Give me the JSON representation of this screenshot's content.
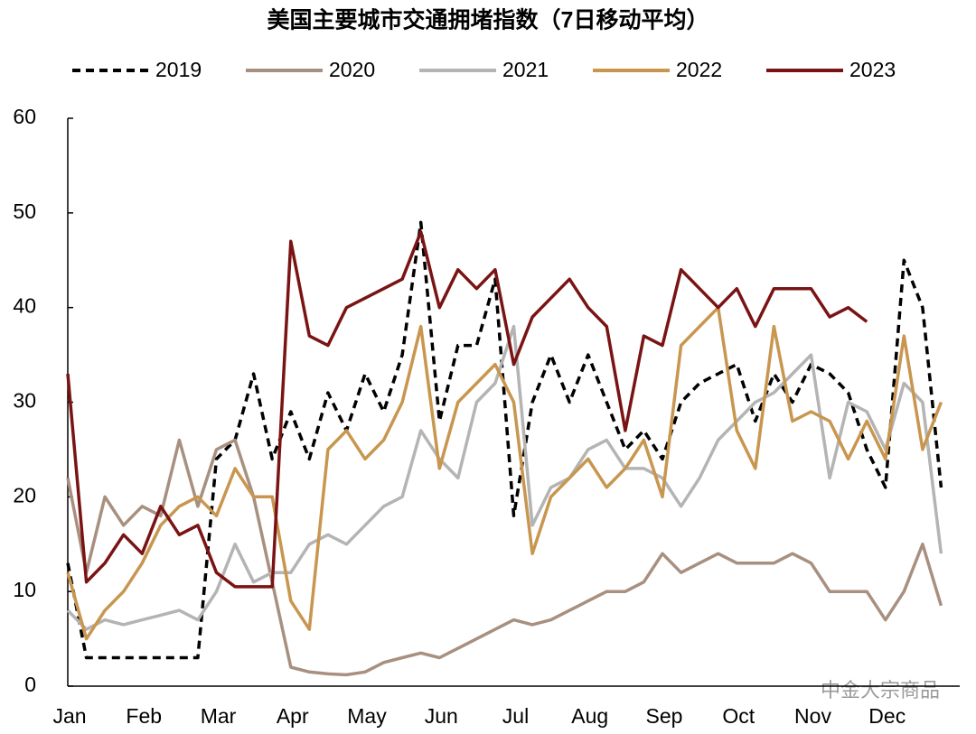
{
  "chart_data": {
    "type": "line",
    "title": "美国主要城市交通拥堵指数（7日移动平均）",
    "annotation": "中金大宗商品",
    "categories": [
      "Jan",
      null,
      null,
      null,
      "Feb",
      null,
      null,
      null,
      "Mar",
      null,
      null,
      null,
      "Apr",
      null,
      null,
      null,
      "May",
      null,
      null,
      null,
      "Jun",
      null,
      null,
      null,
      "Jul",
      null,
      null,
      null,
      "Aug",
      null,
      null,
      null,
      "Sep",
      null,
      null,
      null,
      "Oct",
      null,
      null,
      null,
      "Nov",
      null,
      null,
      null,
      "Dec",
      null,
      null,
      null
    ],
    "series": [
      {
        "name": "2019",
        "color": "#000000",
        "dash": true,
        "values": [
          13,
          3,
          3,
          3,
          3,
          3,
          3,
          3,
          24,
          26,
          33,
          24,
          29,
          24,
          31,
          27,
          33,
          29,
          35,
          49,
          28,
          36,
          36,
          43,
          18,
          30,
          35,
          30,
          35,
          30,
          25,
          27,
          24,
          30,
          32,
          33,
          34,
          28,
          33,
          30,
          34,
          33,
          31,
          25,
          21,
          45,
          40,
          21
        ]
      },
      {
        "name": "2020",
        "color": "#a89080",
        "dash": false,
        "values": [
          22,
          12,
          20,
          17,
          19,
          18,
          26,
          19,
          25,
          26,
          20,
          11,
          2,
          1.5,
          1.3,
          1.2,
          1.5,
          2.5,
          3,
          3.5,
          3,
          4,
          5,
          6,
          7,
          6.5,
          7,
          8,
          9,
          10,
          10,
          11,
          14,
          12,
          13,
          14,
          13,
          13,
          13,
          14,
          13,
          10,
          10,
          10,
          7,
          10,
          15,
          8.5
        ]
      },
      {
        "name": "2021",
        "color": "#b4b4b4",
        "dash": false,
        "values": [
          8,
          6,
          7,
          6.5,
          7,
          7.5,
          8,
          7,
          10,
          15,
          11,
          12,
          12,
          15,
          16,
          15,
          17,
          19,
          20,
          27,
          24,
          22,
          30,
          32,
          38,
          17,
          21,
          22,
          25,
          26,
          23,
          23,
          22,
          19,
          22,
          26,
          28,
          30,
          31,
          33,
          35,
          22,
          30,
          29,
          25,
          32,
          30,
          14
        ]
      },
      {
        "name": "2022",
        "color": "#c8964f",
        "dash": false,
        "values": [
          12,
          5,
          8,
          10,
          13,
          17,
          19,
          20,
          18,
          23,
          20,
          20,
          9,
          6,
          25,
          27,
          24,
          26,
          30,
          38,
          23,
          30,
          32,
          34,
          30,
          14,
          20,
          22,
          24,
          21,
          23,
          26,
          20,
          36,
          38,
          40,
          27,
          23,
          38,
          28,
          29,
          28,
          24,
          28,
          24,
          37,
          25,
          30
        ]
      },
      {
        "name": "2023",
        "color": "#7a1414",
        "dash": false,
        "values": [
          33,
          11,
          13,
          16,
          14,
          19,
          16,
          17,
          12,
          10.5,
          10.5,
          10.5,
          47,
          37,
          36,
          40,
          41,
          42,
          43,
          48,
          40,
          44,
          42,
          44,
          34,
          39,
          41,
          43,
          40,
          38,
          27,
          37,
          36,
          44,
          42,
          40,
          42,
          38,
          42,
          42,
          42,
          39,
          40,
          38.5,
          null,
          null,
          null,
          null
        ]
      }
    ],
    "ylim": [
      0,
      60
    ],
    "yticks": [
      0,
      10,
      20,
      30,
      40,
      50,
      60
    ],
    "grid": false
  }
}
